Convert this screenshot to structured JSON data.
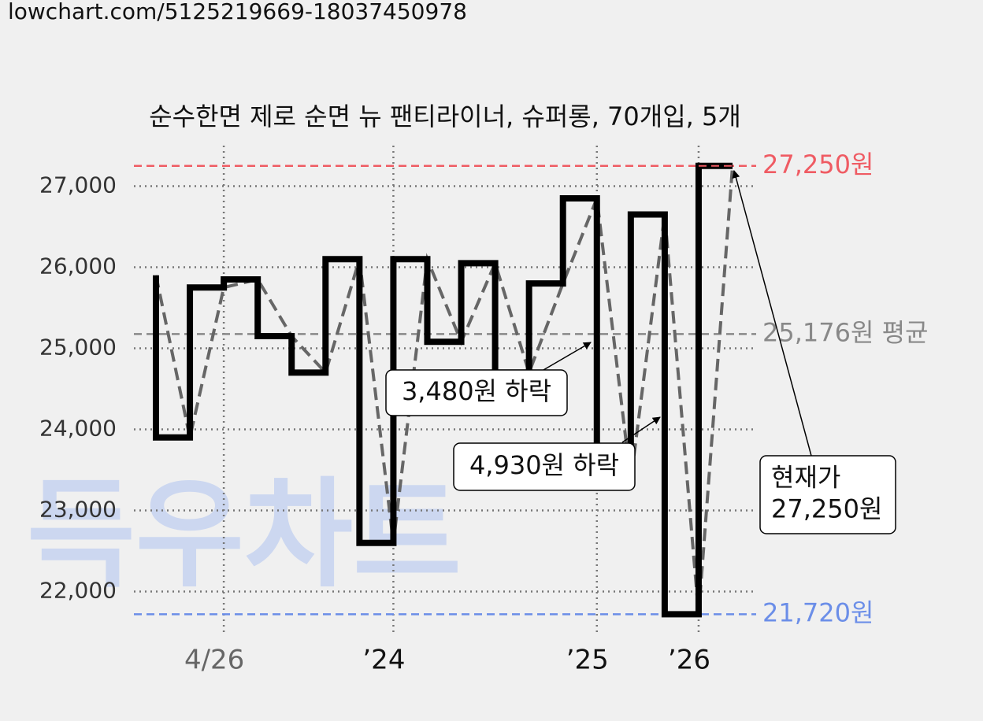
{
  "header": {
    "url": "lowchart.com/5125219669-18037450978"
  },
  "chart_data": {
    "type": "step-line",
    "title": "순수한면 제로 순면 뉴 팬티라이너, 슈퍼롱, 70개입, 5개",
    "values": [
      25900,
      23900,
      25750,
      25850,
      25150,
      24700,
      26100,
      22600,
      26100,
      25080,
      26050,
      24700,
      25800,
      26850,
      23370,
      26650,
      21720,
      27250
    ],
    "color": "#000000",
    "trend_color": "#666666",
    "ylim": [
      21500,
      27500
    ],
    "yticks": [
      {
        "value": 22000,
        "label": "22,000"
      },
      {
        "value": 23000,
        "label": "23,000"
      },
      {
        "value": 24000,
        "label": "24,000"
      },
      {
        "value": 25000,
        "label": "25,000"
      },
      {
        "value": 26000,
        "label": "26,000"
      },
      {
        "value": 27000,
        "label": "27,000"
      }
    ],
    "xticks": [
      {
        "value": 2,
        "label": "4/26"
      },
      {
        "value": 7,
        "label": "’24"
      },
      {
        "value": 13,
        "label": "’25"
      },
      {
        "value": 16,
        "label": "’26"
      }
    ],
    "grid": true,
    "reference_lines": [
      {
        "value": 27250,
        "label": "27,250원",
        "color": "#ef5b63"
      },
      {
        "value": 25176,
        "label": "25,176원 평균",
        "color": "#888888"
      },
      {
        "value": 21720,
        "label": "21,720원",
        "color": "#6b8ee8"
      }
    ],
    "annotations": [
      {
        "text": [
          "3,480원 하락"
        ]
      },
      {
        "text": [
          "4,930원 하락"
        ]
      },
      {
        "text": [
          "현재가",
          "27,250원"
        ]
      }
    ],
    "watermark": "득우차트"
  }
}
